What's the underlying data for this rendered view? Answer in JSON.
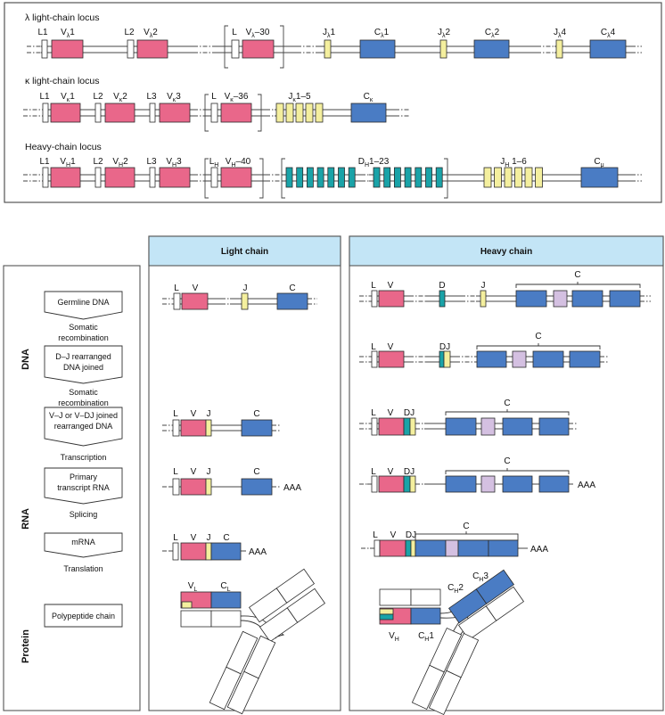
{
  "colors": {
    "v_segment": "#e9678a",
    "c_segment": "#4a7cc4",
    "j_segment": "#f4ef9e",
    "d_segment": "#1aa3a8",
    "hinge_exon": "#d4c0e1",
    "leader": "#ffffff",
    "panel_header": "#c3e5f6"
  },
  "loci": {
    "lambda": {
      "title": "λ light-chain locus",
      "labels": [
        [
          "L1"
        ],
        [
          "V",
          "λ",
          "1"
        ],
        [
          "L2"
        ],
        [
          "V",
          "λ",
          "2"
        ],
        [
          "L"
        ],
        [
          "V",
          "λ",
          "–30"
        ],
        [
          "J",
          "λ",
          "1"
        ],
        [
          "C",
          "λ",
          "1"
        ],
        [
          "J",
          "λ",
          "2"
        ],
        [
          "C",
          "λ",
          "2"
        ],
        [
          "J",
          "λ",
          "4"
        ],
        [
          "C",
          "λ",
          "4"
        ]
      ]
    },
    "kappa": {
      "title": "κ light-chain locus",
      "labels": [
        [
          "L1"
        ],
        [
          "V",
          "κ",
          "1"
        ],
        [
          "L2"
        ],
        [
          "V",
          "κ",
          "2"
        ],
        [
          "L3"
        ],
        [
          "V",
          "κ",
          "3"
        ],
        [
          "L"
        ],
        [
          "V",
          "κ",
          "–36"
        ],
        [
          "J",
          "κ",
          "1–5"
        ],
        [
          "C",
          "κ"
        ]
      ]
    },
    "heavy": {
      "title": "Heavy-chain locus",
      "labels": [
        [
          "L1"
        ],
        [
          "V",
          "H",
          "1"
        ],
        [
          "L2"
        ],
        [
          "V",
          "H",
          "2"
        ],
        [
          "L3"
        ],
        [
          "V",
          "H",
          "3"
        ],
        [
          "L",
          "H"
        ],
        [
          "V",
          "H",
          "–40"
        ],
        [
          "D",
          "H",
          "1–23"
        ],
        [
          "J",
          "H",
          " 1–6"
        ],
        [
          "C",
          "μ"
        ]
      ]
    }
  },
  "flow": {
    "sections": [
      "DNA",
      "RNA",
      "Protein"
    ],
    "stages": [
      {
        "box": [
          "Germline DNA"
        ],
        "step": [
          "Somatic",
          "recombination"
        ]
      },
      {
        "box": [
          "D–J rearranged",
          "DNA joined"
        ],
        "step": [
          "Somatic",
          "recombination"
        ]
      },
      {
        "box": [
          "V–J or V–DJ joined",
          "rearranged DNA"
        ],
        "step": [
          "Transcription"
        ]
      },
      {
        "box": [
          "Primary",
          "transcript RNA"
        ],
        "step": [
          "Splicing"
        ]
      },
      {
        "box": [
          "mRNA"
        ],
        "step": [
          "Translation"
        ]
      },
      {
        "box": [
          "Polypeptide chain"
        ],
        "step": []
      }
    ]
  },
  "panels": {
    "light": {
      "title": "Light chain",
      "rows": [
        [
          [
            "L"
          ],
          [
            "V"
          ],
          [
            "J"
          ],
          [
            "C"
          ]
        ],
        [
          [
            "L"
          ],
          [
            "V"
          ],
          [
            "J"
          ],
          [
            "C"
          ]
        ],
        [
          [
            "L"
          ],
          [
            "V"
          ],
          [
            "J"
          ],
          [
            "C"
          ]
        ],
        [
          [
            "L"
          ],
          [
            "V"
          ],
          [
            "J"
          ],
          [
            "C"
          ]
        ]
      ],
      "tail": "AAA",
      "protein": [
        [
          "V",
          "L"
        ],
        [
          "C",
          "L"
        ]
      ]
    },
    "heavy": {
      "title": "Heavy chain",
      "rows": [
        [
          [
            "L"
          ],
          [
            "V"
          ],
          [
            "D"
          ],
          [
            "J"
          ],
          [
            "C"
          ]
        ],
        [
          [
            "L"
          ],
          [
            "V"
          ],
          [
            "DJ"
          ],
          [
            "C"
          ]
        ],
        [
          [
            "L"
          ],
          [
            "V"
          ],
          [
            "DJ"
          ],
          [
            "C"
          ]
        ],
        [
          [
            "L"
          ],
          [
            "V"
          ],
          [
            "DJ"
          ],
          [
            "C"
          ]
        ],
        [
          [
            "L"
          ],
          [
            "V"
          ],
          [
            "DJ"
          ],
          [
            "C"
          ]
        ]
      ],
      "tail": "AAA",
      "protein": [
        [
          "V",
          "H"
        ],
        [
          "C",
          "H",
          "1"
        ],
        [
          "C",
          "H",
          "2"
        ],
        [
          "C",
          "H",
          "3"
        ]
      ]
    }
  }
}
